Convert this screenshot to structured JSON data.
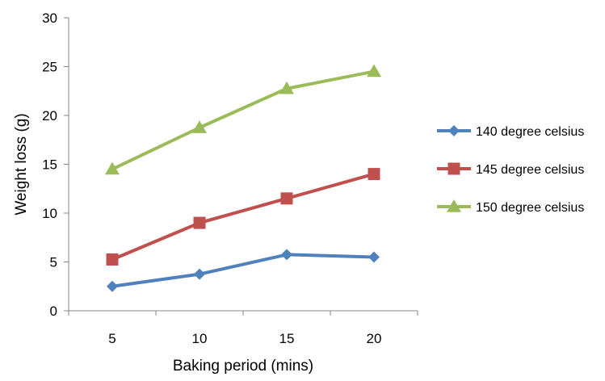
{
  "chart_data": {
    "type": "line",
    "xlabel": "Baking period (mins)",
    "ylabel": "Weight loss (g)",
    "categories": [
      "5",
      "10",
      "15",
      "20"
    ],
    "x": [
      5,
      10,
      15,
      20
    ],
    "ylim": [
      0,
      30
    ],
    "yticks": [
      0,
      5,
      10,
      15,
      20,
      25,
      30
    ],
    "grid": false,
    "legend_position": "right",
    "series": [
      {
        "name": "140 degree celsius",
        "values": [
          2.5,
          3.75,
          5.75,
          5.5
        ],
        "color": "#4F81BD",
        "marker": "diamond"
      },
      {
        "name": "145 degree celsius",
        "values": [
          5.25,
          9.0,
          11.5,
          14.0
        ],
        "color": "#C0504D",
        "marker": "square"
      },
      {
        "name": "150 degree celsius",
        "values": [
          14.5,
          18.75,
          22.75,
          24.5
        ],
        "color": "#9BBB59",
        "marker": "triangle"
      }
    ]
  }
}
